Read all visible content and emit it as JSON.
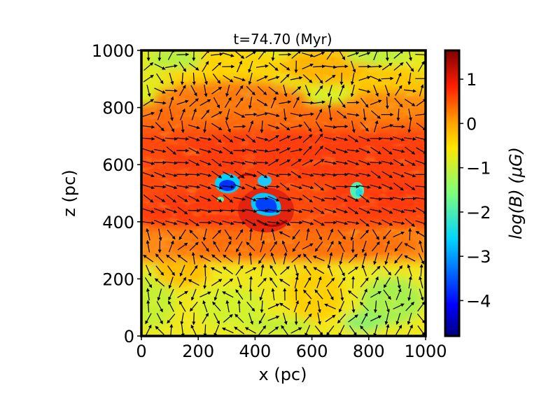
{
  "chart_data": {
    "type": "heatmap",
    "title": "t=74.70 (Myr)",
    "xlabel": "x (pc)",
    "ylabel": "z (pc)",
    "xlim": [
      0,
      1000
    ],
    "ylim": [
      0,
      1000
    ],
    "x_ticks": [
      0,
      200,
      400,
      600,
      800,
      1000
    ],
    "y_ticks": [
      0,
      200,
      400,
      600,
      800,
      1000
    ],
    "x_tick_labels": [
      "0",
      "200",
      "400",
      "600",
      "800",
      "1000"
    ],
    "y_tick_labels": [
      "0",
      "200",
      "400",
      "600",
      "800",
      "1000"
    ],
    "colormap": "jet",
    "colorbar": {
      "label": "log(B) (μG)",
      "range": [
        -4.8,
        1.65
      ],
      "ticks": [
        1,
        0,
        -1,
        -2,
        -3,
        -4
      ],
      "tick_labels": [
        "1",
        "0",
        "−1",
        "−2",
        "−3",
        "−4"
      ]
    },
    "field_features": {
      "disk_band_z": [
        370,
        700
      ],
      "disk_band_value": 0.7,
      "background_value": -0.7,
      "low_field_cavities": [
        {
          "x": 300,
          "z": 530,
          "value": -3.8
        },
        {
          "x": 450,
          "z": 460,
          "value": -4.2
        },
        {
          "x": 760,
          "z": 510,
          "value": -2.5
        }
      ]
    },
    "vector_field": {
      "description": "magnetic field direction arrows",
      "x_spacing": 40,
      "z_spacing": 42
    }
  }
}
